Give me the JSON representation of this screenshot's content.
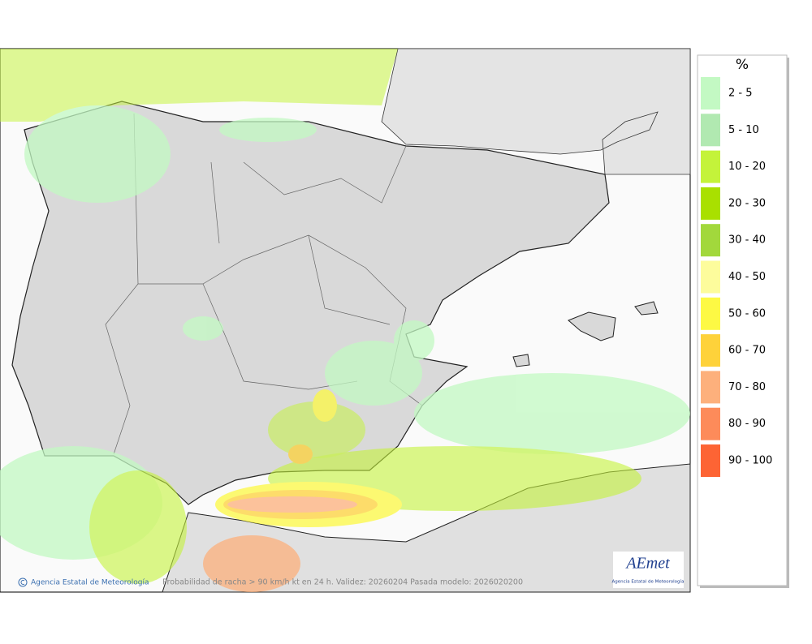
{
  "legend": {
    "title": "%",
    "items": [
      {
        "label": "2 - 5",
        "color": "#c3f9c3"
      },
      {
        "label": "5 - 10",
        "color": "#b1e9b1"
      },
      {
        "label": "10 - 20",
        "color": "#c4f33a"
      },
      {
        "label": "20 - 30",
        "color": "#a9e000"
      },
      {
        "label": "30 - 40",
        "color": "#a2d83c"
      },
      {
        "label": "40 - 50",
        "color": "#fdfc9c"
      },
      {
        "label": "50 - 60",
        "color": "#fdf944"
      },
      {
        "label": "60 - 70",
        "color": "#fed23a"
      },
      {
        "label": "70 - 80",
        "color": "#fdb07c"
      },
      {
        "label": "80 - 90",
        "color": "#fd8b5a"
      },
      {
        "label": "90 - 100",
        "color": "#fd6434"
      }
    ]
  },
  "footer": {
    "copyright": "Agencia Estatal de Meteorología",
    "caption": "Probabilidad de racha > 90 km/h kt en 24 h. Validez: 20260204 Pasada modelo: 2026020200"
  },
  "logo": {
    "name": "AEmet",
    "subtitle": "Agencia Estatal de Meteorología"
  }
}
